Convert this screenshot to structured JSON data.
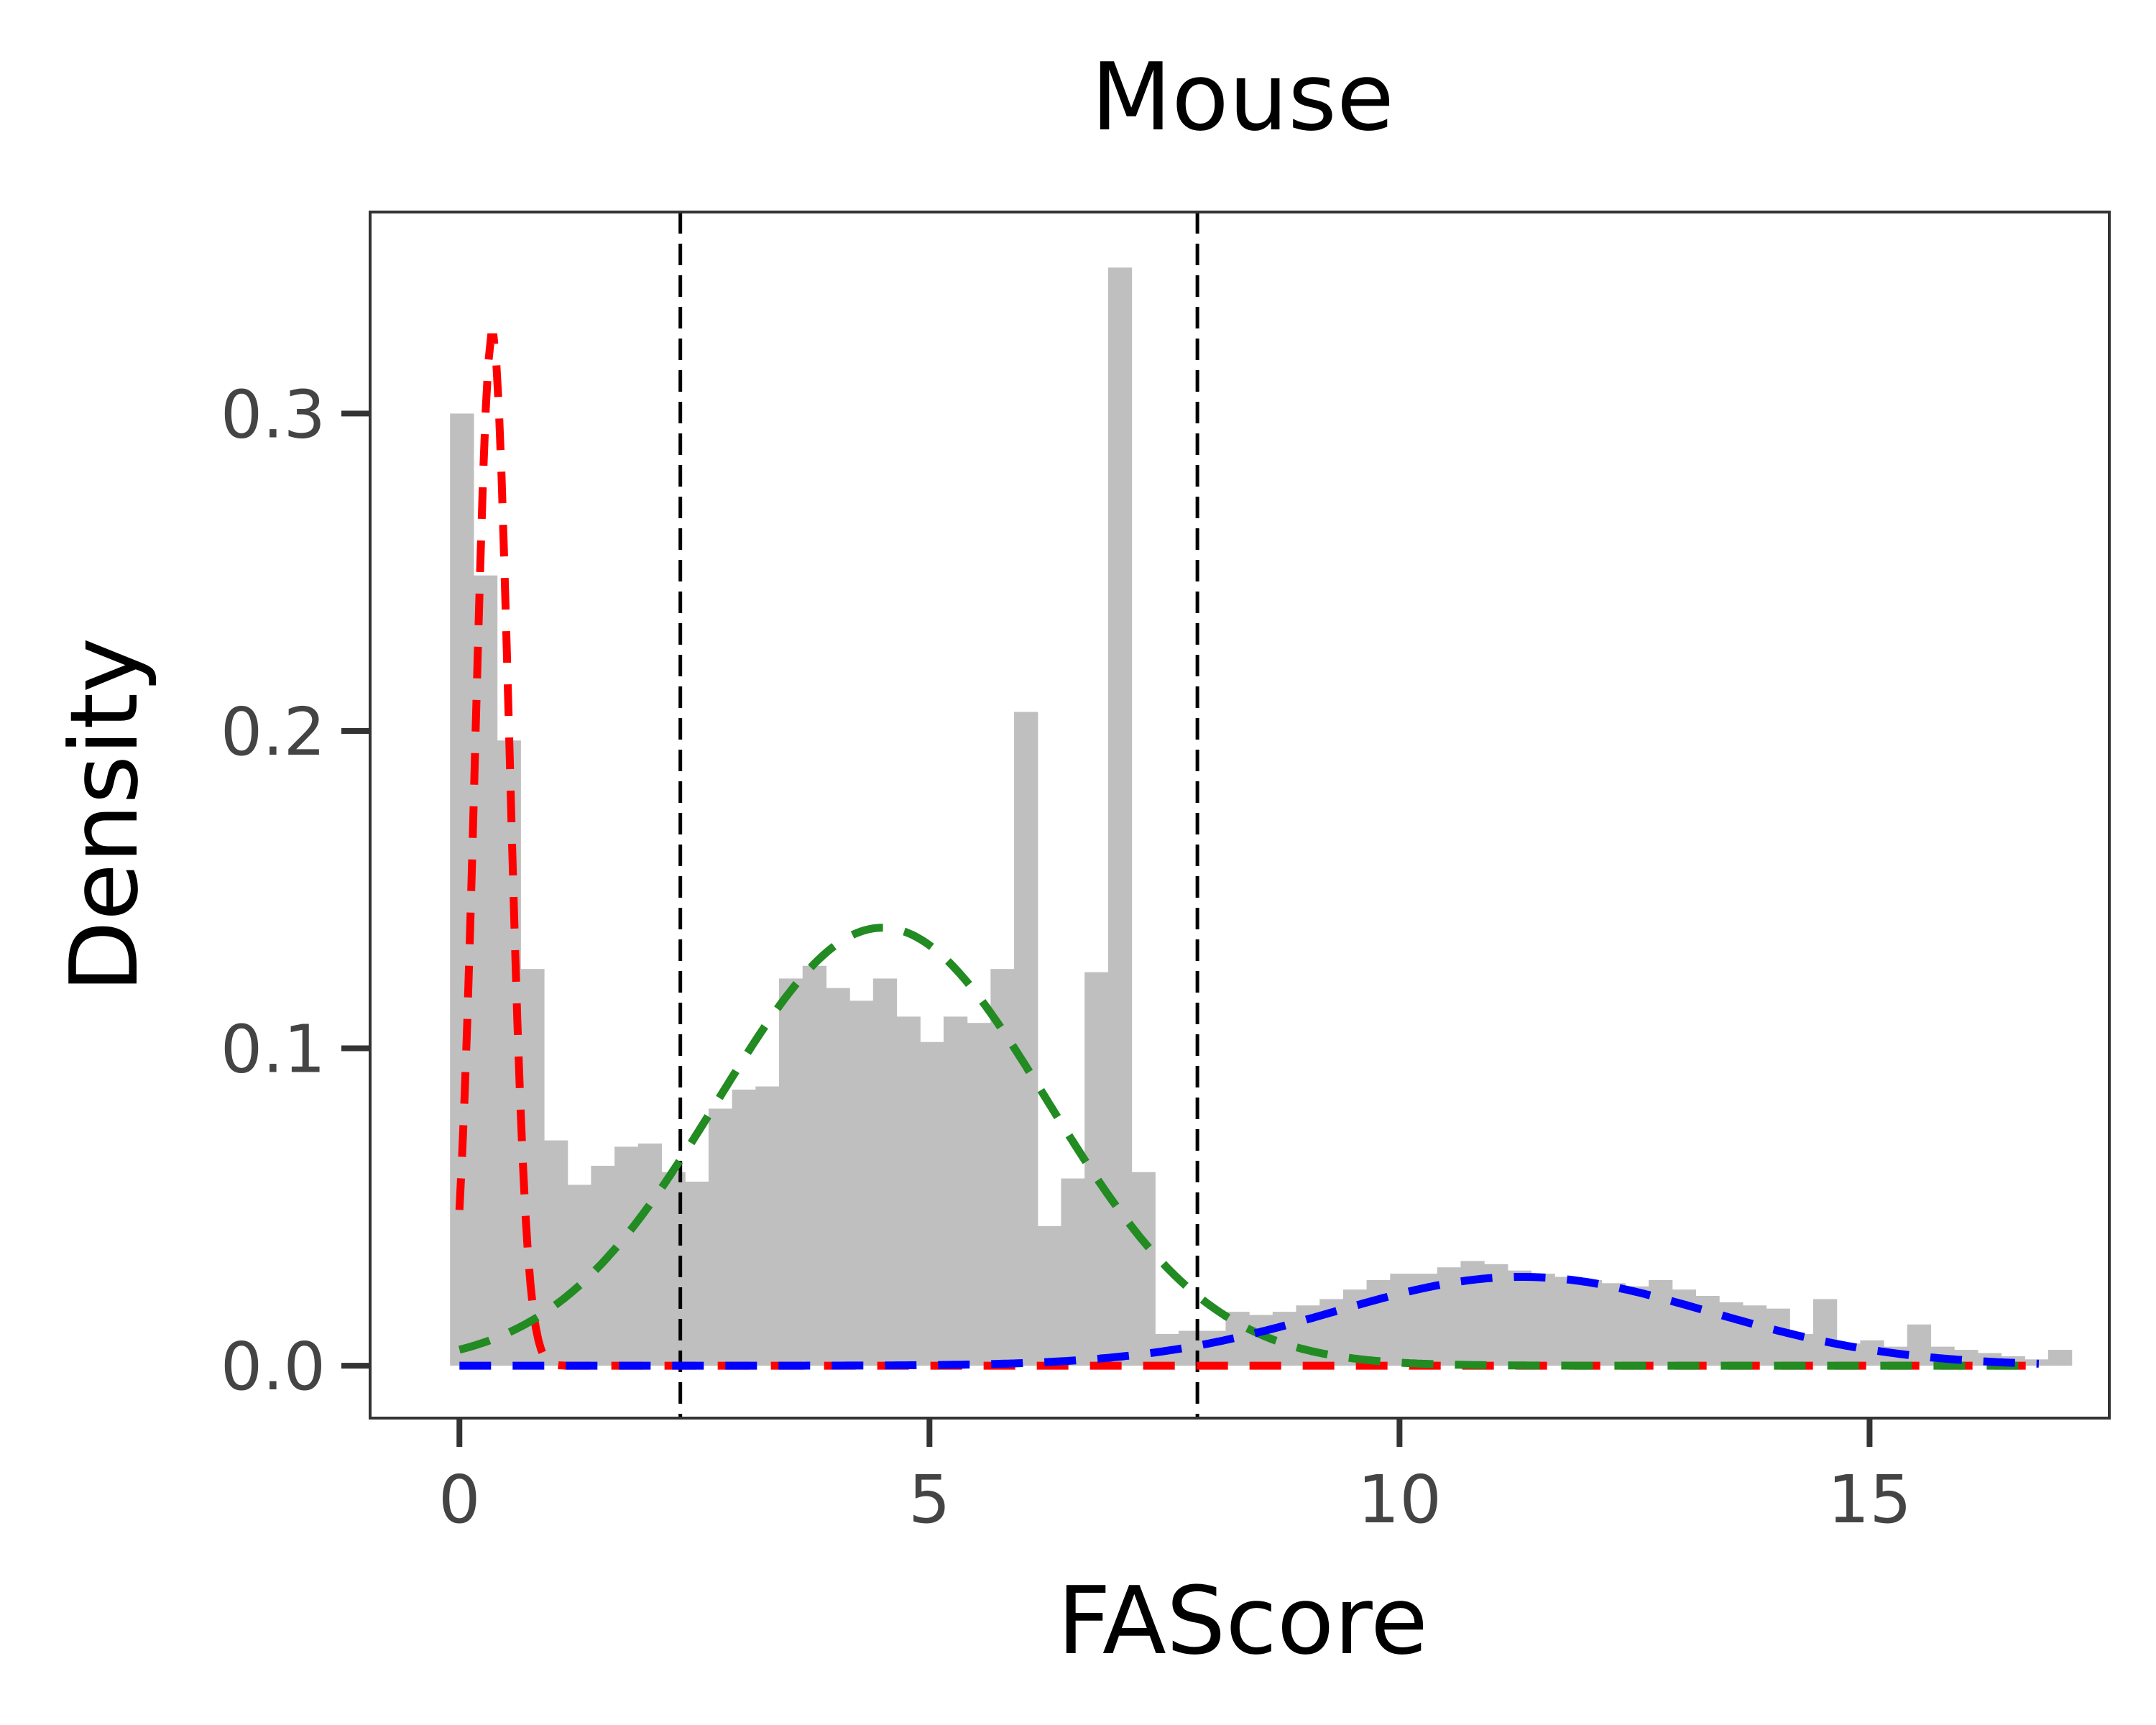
{
  "chart_data": {
    "type": "bar",
    "title": "Mouse",
    "xlabel": "FAScore",
    "ylabel": "Density",
    "xlim": [
      -0.95,
      17.55
    ],
    "ylim": [
      -0.0165,
      0.3635
    ],
    "xticks": [
      0,
      5,
      10,
      15
    ],
    "yticks": [
      0.0,
      0.1,
      0.2,
      0.3
    ],
    "xtick_labels": [
      "0",
      "5",
      "10",
      "15"
    ],
    "ytick_labels": [
      "0.0",
      "0.1",
      "0.2",
      "0.3"
    ],
    "grid": false,
    "histogram": {
      "color": "#bfbfbf",
      "bin_start": -0.1,
      "bin_width": 0.25,
      "values": [
        0.3,
        0.249,
        0.197,
        0.125,
        0.071,
        0.057,
        0.063,
        0.069,
        0.07,
        0.061,
        0.058,
        0.081,
        0.087,
        0.088,
        0.122,
        0.126,
        0.119,
        0.115,
        0.122,
        0.11,
        0.102,
        0.11,
        0.108,
        0.125,
        0.206,
        0.044,
        0.059,
        0.124,
        0.346,
        0.061,
        0.01,
        0.011,
        0.011,
        0.017,
        0.016,
        0.017,
        0.019,
        0.021,
        0.024,
        0.027,
        0.029,
        0.029,
        0.031,
        0.033,
        0.032,
        0.03,
        0.029,
        0.028,
        0.027,
        0.026,
        0.025,
        0.027,
        0.024,
        0.022,
        0.02,
        0.019,
        0.018,
        0.01,
        0.021,
        0.007,
        0.008,
        0.006,
        0.013,
        0.006,
        0.005,
        0.004,
        0.003,
        0.002,
        0.005
      ]
    },
    "curves": [
      {
        "type": "gaussian",
        "color": "#ff0000",
        "style": "dashed",
        "amplitude": 0.325,
        "mean": 0.35,
        "sd": 0.18
      },
      {
        "type": "gaussian",
        "color": "#228b22",
        "style": "dashed",
        "amplitude": 0.138,
        "mean": 4.5,
        "sd": 1.75
      },
      {
        "type": "gaussian",
        "color": "#0000ff",
        "style": "dashed",
        "amplitude": 0.028,
        "mean": 11.3,
        "sd": 2.0
      }
    ],
    "curve_range": [
      0.0,
      16.8
    ],
    "vlines": [
      {
        "x": 2.35,
        "color": "#000000",
        "style": "dashed"
      },
      {
        "x": 7.85,
        "color": "#000000",
        "style": "dashed"
      }
    ]
  }
}
